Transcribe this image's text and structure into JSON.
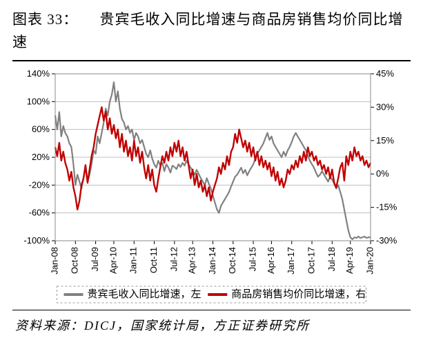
{
  "title_prefix": "图表 33：",
  "title_rest": "贵宾毛收入同比增速与商品房销售均价同比增速",
  "source_label": "资料来源：",
  "sources": "DICJ，国家统计局，方正证券研究所",
  "chart": {
    "type": "line_dual_axis",
    "background_color": "#ffffff",
    "plot_border_color": "#888888",
    "grid_color": "#bfbfbf",
    "tick_font_size": 13,
    "tick_font_family": "Arial",
    "tick_color": "#000000",
    "x_rotation": -90,
    "legend": {
      "position": "bottom",
      "dash_color": "#999999",
      "items": [
        {
          "label": "贵宾毛收入同比增速，左",
          "color": "#808080"
        },
        {
          "label": "商品房销售均价同比增速，右",
          "color": "#c00000"
        }
      ],
      "fontsize": 15,
      "line_width": 4
    },
    "left_axis": {
      "min": -100,
      "max": 140,
      "step": 40,
      "format_suffix": "%"
    },
    "right_axis": {
      "min": -30,
      "max": 45,
      "step": 15,
      "format_suffix": "%"
    },
    "x_labels": [
      "Jan-08",
      "Oct-08",
      "Jul-09",
      "Apr-10",
      "Jan-11",
      "Oct-11",
      "Jul-12",
      "Apr-13",
      "Jan-14",
      "Oct-14",
      "Jul-15",
      "Apr-16",
      "Jan-17",
      "Oct-17",
      "Jul-18",
      "Apr-19",
      "Jan-20"
    ],
    "x_count": 157,
    "series": [
      {
        "name": "vip_gross_yoy_left",
        "axis": "left",
        "color": "#808080",
        "width": 2.2,
        "values": [
          80,
          60,
          85,
          50,
          65,
          55,
          50,
          40,
          35,
          10,
          -20,
          -5,
          -15,
          -25,
          -10,
          5,
          -15,
          -5,
          10,
          30,
          25,
          50,
          40,
          55,
          70,
          90,
          80,
          100,
          110,
          128,
          100,
          115,
          90,
          75,
          70,
          60,
          65,
          55,
          60,
          45,
          55,
          50,
          40,
          45,
          35,
          25,
          20,
          30,
          18,
          10,
          5,
          15,
          8,
          12,
          0,
          10,
          5,
          -2,
          8,
          6,
          3,
          10,
          6,
          12,
          8,
          15,
          10,
          5,
          0,
          -5,
          2,
          -4,
          -10,
          -15,
          -20,
          -10,
          -18,
          -25,
          -35,
          -45,
          -55,
          -60,
          -50,
          -45,
          -40,
          -35,
          -30,
          -22,
          -15,
          -8,
          -5,
          0,
          5,
          -3,
          2,
          -6,
          0,
          5,
          10,
          18,
          25,
          30,
          35,
          40,
          48,
          55,
          45,
          50,
          40,
          35,
          30,
          25,
          20,
          28,
          22,
          30,
          35,
          42,
          50,
          55,
          50,
          45,
          40,
          35,
          30,
          22,
          15,
          10,
          5,
          -2,
          -8,
          -5,
          0,
          -5,
          -10,
          -15,
          -8,
          -12,
          -18,
          -25,
          -20,
          -30,
          -40,
          -55,
          -70,
          -85,
          -95,
          -98,
          -95,
          -96,
          -94,
          -96,
          -95,
          -94,
          -96,
          -95,
          -95
        ]
      },
      {
        "name": "house_price_yoy_right",
        "axis": "right",
        "color": "#c00000",
        "width": 2.4,
        "values": [
          12,
          8,
          14,
          6,
          10,
          5,
          2,
          -3,
          1,
          -6,
          -10,
          -16,
          -12,
          -5,
          -2,
          4,
          -4,
          2,
          8,
          12,
          18,
          22,
          26,
          30,
          24,
          28,
          20,
          25,
          18,
          22,
          16,
          20,
          12,
          18,
          10,
          15,
          8,
          12,
          6,
          15,
          8,
          12,
          5,
          10,
          3,
          -2,
          4,
          -3,
          2,
          -5,
          -8,
          -2,
          3,
          8,
          5,
          10,
          6,
          12,
          8,
          14,
          10,
          15,
          8,
          12,
          6,
          10,
          4,
          -2,
          2,
          -5,
          0,
          -6,
          -3,
          -8,
          -5,
          -10,
          -6,
          -12,
          -8,
          -5,
          -2,
          3,
          0,
          5,
          2,
          8,
          4,
          10,
          12,
          18,
          14,
          20,
          16,
          12,
          15,
          10,
          14,
          8,
          12,
          6,
          10,
          4,
          8,
          3,
          6,
          2,
          5,
          -1,
          3,
          -3,
          1,
          -5,
          -2,
          -6,
          -3,
          2,
          0,
          4,
          2,
          6,
          3,
          8,
          5,
          10,
          6,
          12,
          8,
          10,
          6,
          8,
          4,
          6,
          2,
          4,
          0,
          3,
          -2,
          2,
          -4,
          -6,
          -2,
          3,
          5,
          -3,
          8,
          4,
          10,
          6,
          12,
          8,
          10,
          6,
          8,
          4,
          6,
          3,
          5
        ]
      }
    ]
  }
}
